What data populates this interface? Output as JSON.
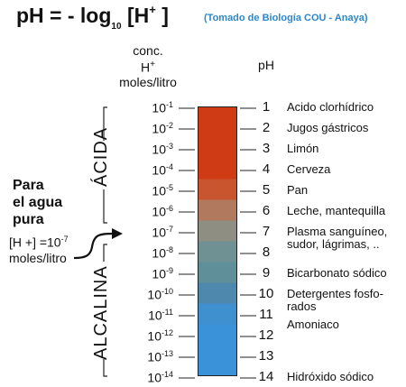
{
  "header": {
    "formula_ph": "pH = - log",
    "formula_sub": "10",
    "formula_h": "[H",
    "formula_sup": "+",
    "formula_close": "]",
    "source": "(Tomado de Biología COU -  Anaya)",
    "conc_line1": "conc.",
    "conc_line2": "H",
    "conc_line2_sup": "+",
    "conc_line3": "moles/litro",
    "ph_label": "pH"
  },
  "regions": {
    "acid_label": "ÁCIDA",
    "alkaline_label": "ALCALINA"
  },
  "water_note": {
    "line1": "Para",
    "line2": "el agua",
    "line3": "pura",
    "conc_text": "[H +] =10",
    "conc_exp": "-7",
    "units": "moles/litro"
  },
  "scale": [
    {
      "base": "10",
      "exp": "-1",
      "ph": "1",
      "substance": [
        "Acido clorhídrico"
      ],
      "color": "#cf3b14"
    },
    {
      "base": "10",
      "exp": "-2",
      "ph": "2",
      "substance": [
        "Jugos gástricos"
      ],
      "color": "#cf3b14"
    },
    {
      "base": "10",
      "exp": "-3",
      "ph": "3",
      "substance": [
        "Limón"
      ],
      "color": "#cf3b14"
    },
    {
      "base": "10",
      "exp": "-4",
      "ph": "4",
      "substance": [
        "Cerveza"
      ],
      "color": "#cf3b14"
    },
    {
      "base": "10",
      "exp": "-5",
      "ph": "5",
      "substance": [
        "Pan"
      ],
      "color": "#c8552e"
    },
    {
      "base": "10",
      "exp": "-6",
      "ph": "6",
      "substance": [
        "Leche, mantequilla"
      ],
      "color": "#b1795e"
    },
    {
      "base": "10",
      "exp": "-7",
      "ph": "7",
      "substance": [
        "Plasma sanguíneo,",
        "sudor, lágrimas, .."
      ],
      "color": "#8e8e83"
    },
    {
      "base": "10",
      "exp": "-8",
      "ph": "8",
      "substance": [],
      "color": "#6f9194"
    },
    {
      "base": "10",
      "exp": "-9",
      "ph": "9",
      "substance": [
        "Bicarbonato sódico"
      ],
      "color": "#5f8f98"
    },
    {
      "base": "10",
      "exp": "-10",
      "ph": "10",
      "substance": [
        "Detergentes fosfo-",
        "rados"
      ],
      "color": "#4e89ad"
    },
    {
      "base": "10",
      "exp": "-11",
      "ph": "11",
      "substance": [],
      "color": "#3f90cf"
    },
    {
      "base": "10",
      "exp": "-12",
      "ph": "12",
      "substance": [
        "Amoniaco"
      ],
      "color": "#3a92d8"
    },
    {
      "base": "10",
      "exp": "-13",
      "ph": "13",
      "substance": [],
      "color": "#3a92d8"
    },
    {
      "base": "10",
      "exp": "-14",
      "ph": "14",
      "substance": [
        "Hidróxido sódico"
      ],
      "color": "#3a92d8"
    }
  ]
}
